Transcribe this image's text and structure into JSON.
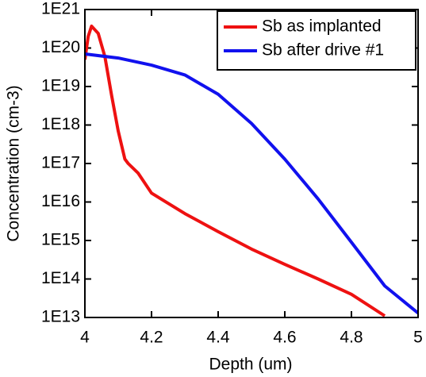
{
  "chart_data": {
    "type": "line",
    "xlabel": "Depth (um)",
    "ylabel": "Concentration (cm-3)",
    "xlim": [
      4,
      5
    ],
    "xticks": [
      4,
      4.2,
      4.4,
      4.6,
      4.8,
      5
    ],
    "ylim": [
      10000000000000.0,
      1e+21
    ],
    "yscale": "log",
    "yticks": [
      {
        "value": 10000000000000.0,
        "label": "1E13"
      },
      {
        "value": 100000000000000.0,
        "label": "1E14"
      },
      {
        "value": 1000000000000000.0,
        "label": "1E15"
      },
      {
        "value": 1e+16,
        "label": "1E16"
      },
      {
        "value": 1e+17,
        "label": "1E17"
      },
      {
        "value": 1e+18,
        "label": "1E18"
      },
      {
        "value": 1e+19,
        "label": "1E19"
      },
      {
        "value": 1e+20,
        "label": "1E20"
      },
      {
        "value": 1e+21,
        "label": "1E21"
      }
    ],
    "legend": "upper right",
    "series": [
      {
        "name": "Sb as implanted",
        "color": "#ee1111",
        "x": [
          4.0,
          4.01,
          4.02,
          4.04,
          4.06,
          4.08,
          4.1,
          4.12,
          4.13,
          4.16,
          4.2,
          4.3,
          4.4,
          4.5,
          4.6,
          4.7,
          4.8,
          4.9
        ],
        "values": [
          5e+19,
          2e+20,
          3.7e+20,
          2.4e+20,
          6e+19,
          6e+18,
          7e+17,
          1.3e+17,
          1e+17,
          5.6e+16,
          1.7e+16,
          5000000000000000.0,
          1700000000000000.0,
          600000000000000.0,
          240000000000000.0,
          100000000000000.0,
          40000000000000.0,
          11000000000000.0
        ]
      },
      {
        "name": "Sb after drive #1",
        "color": "#1111ee",
        "x": [
          4.0,
          4.1,
          4.2,
          4.3,
          4.4,
          4.5,
          4.6,
          4.7,
          4.8,
          4.9,
          5.0
        ],
        "values": [
          7e+19,
          5.5e+19,
          3.6e+19,
          2e+19,
          6.3e+18,
          1.1e+18,
          1.3e+17,
          1.2e+16,
          900000000000000.0,
          66000000000000.0,
          13000000000000.0
        ]
      }
    ]
  }
}
